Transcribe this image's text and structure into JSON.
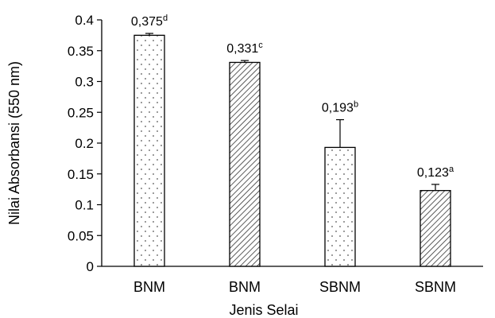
{
  "chart_data": {
    "type": "bar",
    "title": "",
    "xlabel": "Jenis Selai",
    "ylabel": "Nilai Absorbansi (550 nm)",
    "ylim": [
      0,
      0.4
    ],
    "yticks": [
      "0",
      "0.05",
      "0.1",
      "0.15",
      "0.2",
      "0.25",
      "0.3",
      "0.35",
      "0.4"
    ],
    "categories": [
      "BNM",
      "BNM",
      "SBNM",
      "SBNM"
    ],
    "values": [
      0.375,
      0.331,
      0.193,
      0.123
    ],
    "errors": [
      0.003,
      0.003,
      0.045,
      0.01
    ],
    "data_labels": [
      {
        "value": "0,375",
        "letter": "d"
      },
      {
        "value": "0,331",
        "letter": "c"
      },
      {
        "value": "0,193",
        "letter": "b"
      },
      {
        "value": "0,123",
        "letter": "a"
      }
    ],
    "patterns": [
      "dots",
      "diagonal",
      "dots",
      "diagonal"
    ],
    "grid": false,
    "legend": "none",
    "colors": {
      "bar_stroke": "#000000",
      "bar_fill": "#ffffff",
      "axis": "#000000"
    }
  }
}
